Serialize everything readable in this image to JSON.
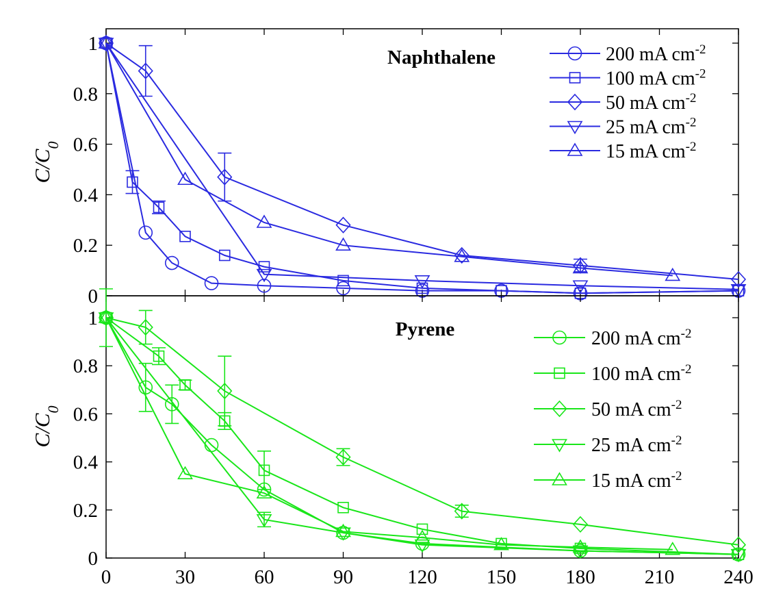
{
  "chart_data": [
    {
      "type": "line",
      "title": "Naphthalene",
      "xlabel": "",
      "ylabel": "C/C0",
      "xlim": [
        0,
        240
      ],
      "ylim": [
        0,
        1.05
      ],
      "yticks": [
        0,
        0.2,
        0.4,
        0.6,
        0.8,
        1
      ],
      "ytick_labels": [
        "0",
        "0.2",
        "0.4",
        "0.6",
        "0.8",
        "1"
      ],
      "grid": false,
      "legend_position": "top-right",
      "color": "#2a2ae0",
      "series": [
        {
          "name": "200 mA cm-2",
          "legend_main": "200 mA cm",
          "legend_sup": "-2",
          "marker": "circle",
          "x": [
            0,
            15,
            25,
            40,
            60,
            90,
            120,
            150,
            180,
            240
          ],
          "y": [
            1.0,
            0.25,
            0.13,
            0.05,
            0.04,
            0.03,
            0.02,
            0.02,
            0.01,
            0.02
          ],
          "err": [
            0,
            0,
            0,
            0,
            0,
            0,
            0,
            0,
            0,
            0
          ]
        },
        {
          "name": "100 mA cm-2",
          "legend_main": "100 mA cm",
          "legend_sup": "-2",
          "marker": "square",
          "x": [
            0,
            10,
            20,
            30,
            45,
            60,
            90,
            120,
            150,
            180,
            240
          ],
          "y": [
            1.0,
            0.45,
            0.35,
            0.235,
            0.16,
            0.115,
            0.06,
            0.03,
            0.02,
            0.01,
            0.02
          ],
          "err": [
            0,
            0.045,
            0.025,
            0,
            0,
            0,
            0,
            0,
            0,
            0,
            0
          ]
        },
        {
          "name": "50 mA cm-2",
          "legend_main": "50 mA cm",
          "legend_sup": "-2",
          "marker": "diamond",
          "x": [
            0,
            15,
            45,
            90,
            135,
            180,
            240
          ],
          "y": [
            1.0,
            0.89,
            0.47,
            0.28,
            0.16,
            0.12,
            0.065
          ],
          "err": [
            0,
            0.1,
            0.095,
            0,
            0,
            0.025,
            0
          ]
        },
        {
          "name": "25 mA cm-2",
          "legend_main": "25 mA cm",
          "legend_sup": "-2",
          "marker": "triangle-down",
          "x": [
            0,
            60,
            120,
            180,
            240
          ],
          "y": [
            1.0,
            0.085,
            0.06,
            0.04,
            0.025
          ],
          "err": [
            0,
            0,
            0,
            0,
            0
          ]
        },
        {
          "name": "15 mA cm-2",
          "legend_main": "15 mA cm",
          "legend_sup": "-2",
          "marker": "triangle-up",
          "x": [
            0,
            30,
            60,
            90,
            135,
            180,
            215
          ],
          "y": [
            1.0,
            0.46,
            0.29,
            0.2,
            0.155,
            0.11,
            0.08
          ],
          "err": [
            0,
            0,
            0,
            0,
            0,
            0,
            0
          ]
        }
      ]
    },
    {
      "type": "line",
      "title": "Pyrene",
      "xlabel": "",
      "ylabel": "C/C0",
      "xlim": [
        0,
        240
      ],
      "ylim": [
        0,
        1.05
      ],
      "xticks": [
        0,
        30,
        60,
        90,
        120,
        150,
        180,
        210,
        240
      ],
      "xtick_labels": [
        "0",
        "30",
        "60",
        "90",
        "120",
        "150",
        "180",
        "210",
        "240"
      ],
      "yticks": [
        0,
        0.2,
        0.4,
        0.6,
        0.8,
        1
      ],
      "ytick_labels": [
        "0",
        "0.2",
        "0.4",
        "0.6",
        "0.8",
        "1"
      ],
      "grid": false,
      "legend_position": "top-right",
      "color": "#19e619",
      "series": [
        {
          "name": "200 mA cm-2",
          "legend_main": "200 mA cm",
          "legend_sup": "-2",
          "marker": "circle",
          "x": [
            0,
            15,
            25,
            40,
            60,
            90,
            120,
            180,
            240
          ],
          "y": [
            1.0,
            0.71,
            0.64,
            0.47,
            0.285,
            0.105,
            0.06,
            0.03,
            0.015
          ],
          "err": [
            0,
            0.1,
            0.08,
            0,
            0,
            0,
            0,
            0,
            0
          ]
        },
        {
          "name": "100 mA cm-2",
          "legend_main": "100 mA cm",
          "legend_sup": "-2",
          "marker": "square",
          "x": [
            0,
            20,
            30,
            45,
            60,
            90,
            120,
            150,
            180,
            240
          ],
          "y": [
            1.0,
            0.84,
            0.72,
            0.57,
            0.365,
            0.21,
            0.12,
            0.06,
            0.04,
            0.015
          ],
          "err": [
            0.12,
            0.035,
            0.02,
            0.035,
            0.08,
            0,
            0,
            0,
            0,
            0
          ]
        },
        {
          "name": "50 mA cm-2",
          "legend_main": "50 mA cm",
          "legend_sup": "-2",
          "marker": "diamond",
          "x": [
            0,
            15,
            45,
            90,
            135,
            180,
            240
          ],
          "y": [
            1.0,
            0.96,
            0.695,
            0.42,
            0.195,
            0.14,
            0.055
          ],
          "err": [
            0,
            0.07,
            0.145,
            0.035,
            0.025,
            0,
            0
          ]
        },
        {
          "name": "25 mA cm-2",
          "legend_main": "25 mA cm",
          "legend_sup": "-2",
          "marker": "triangle-down",
          "x": [
            0,
            60,
            90,
            120,
            180,
            240
          ],
          "y": [
            1.0,
            0.16,
            0.105,
            0.055,
            0.03,
            0.015
          ],
          "err": [
            0,
            0.03,
            0,
            0,
            0,
            0
          ]
        },
        {
          "name": "15 mA cm-2",
          "legend_main": "15 mA cm",
          "legend_sup": "-2",
          "marker": "triangle-up",
          "x": [
            0,
            30,
            60,
            90,
            120,
            150,
            180,
            215
          ],
          "y": [
            1.0,
            0.35,
            0.27,
            0.11,
            0.085,
            0.055,
            0.045,
            0.035
          ],
          "err": [
            0,
            0,
            0,
            0,
            0,
            0,
            0,
            0
          ]
        }
      ]
    }
  ]
}
